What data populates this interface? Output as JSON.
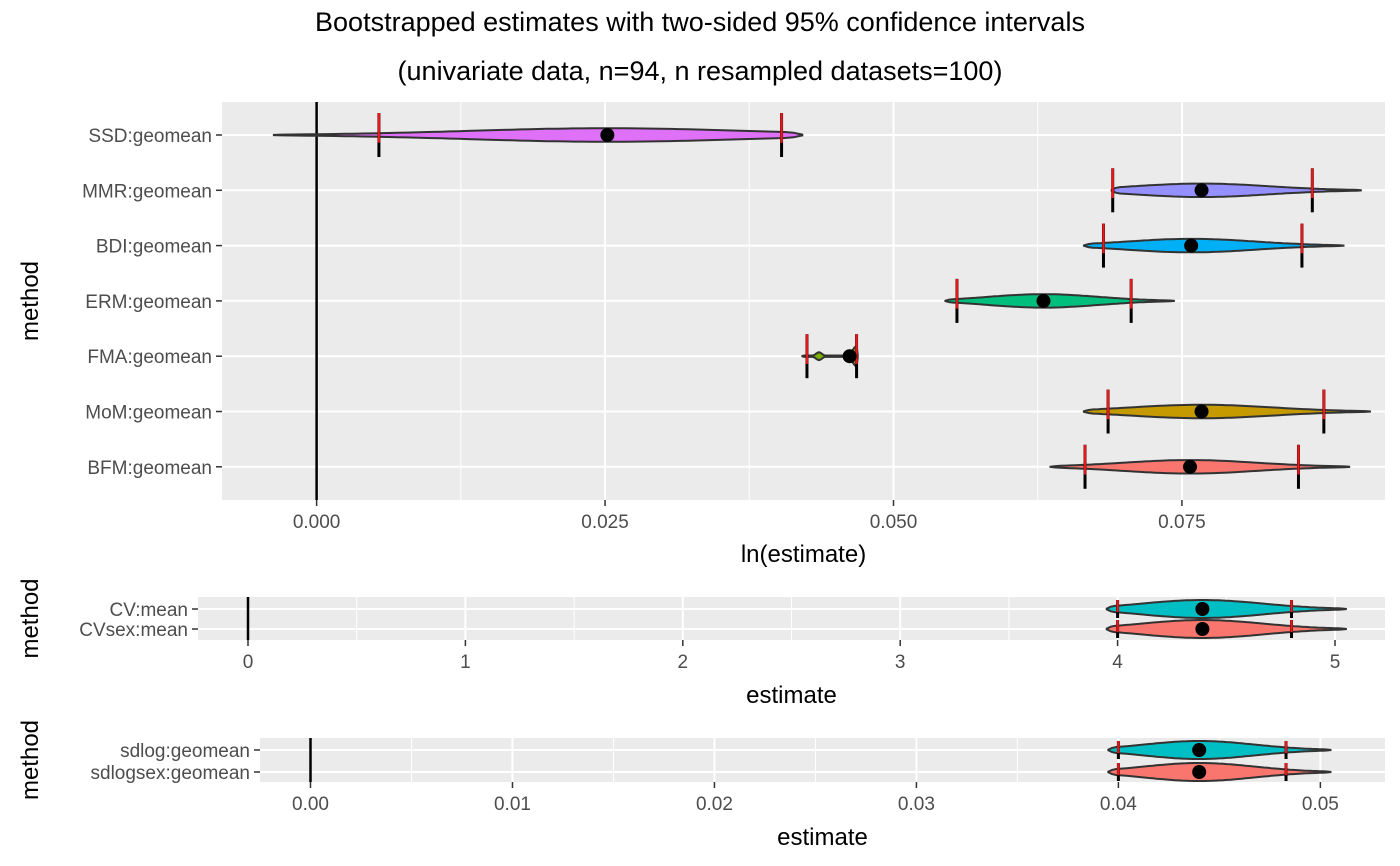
{
  "title_line1": "Bootstrapped estimates with two-sided 95% confidence intervals",
  "title_line2": "(univariate data, n=94, n resampled datasets=100)",
  "colors": {
    "panel_bg": "#ebebeb",
    "grid": "#ffffff",
    "ci_marker": "#e31a1c",
    "point": "#000000",
    "outline": "#333333"
  },
  "chart_data": [
    {
      "type": "violin",
      "xlabel": "ln(estimate)",
      "ylabel": "method",
      "xlim": [
        -0.0082,
        0.0926
      ],
      "xticks": [
        0.0,
        0.025,
        0.05,
        0.075
      ],
      "xtick_labels": [
        "0.000",
        "0.025",
        "0.050",
        "0.075"
      ],
      "reference_line": 0.0,
      "series": [
        {
          "name": "SSD:geomean",
          "fill": "#df70f8",
          "estimate": 0.0252,
          "ci_low": 0.0054,
          "ci_high": 0.0403,
          "range": [
            -0.0037,
            0.0421
          ]
        },
        {
          "name": "MMR:geomean",
          "fill": "#9590ff",
          "estimate": 0.0767,
          "ci_low": 0.069,
          "ci_high": 0.0863,
          "range": [
            0.0689,
            0.0905
          ]
        },
        {
          "name": "BDI:geomean",
          "fill": "#00b0f6",
          "estimate": 0.0758,
          "ci_low": 0.0682,
          "ci_high": 0.0854,
          "range": [
            0.0665,
            0.089
          ]
        },
        {
          "name": "ERM:geomean",
          "fill": "#00bf7d",
          "estimate": 0.063,
          "ci_low": 0.0555,
          "ci_high": 0.0706,
          "range": [
            0.0545,
            0.0743
          ]
        },
        {
          "name": "FMA:geomean",
          "fill": "#7cae00",
          "estimate": 0.0462,
          "ci_low": 0.0425,
          "ci_high": 0.0468,
          "range": [
            0.0421,
            0.0469
          ]
        },
        {
          "name": "MoM:geomean",
          "fill": "#c49a00",
          "estimate": 0.0767,
          "ci_low": 0.0686,
          "ci_high": 0.0873,
          "range": [
            0.0665,
            0.0913
          ]
        },
        {
          "name": "BFM:geomean",
          "fill": "#f8766d",
          "estimate": 0.0757,
          "ci_low": 0.0666,
          "ci_high": 0.0851,
          "range": [
            0.0636,
            0.0895
          ]
        }
      ]
    },
    {
      "type": "violin",
      "xlabel": "estimate",
      "ylabel": "method",
      "xlim": [
        -0.23,
        5.23
      ],
      "xticks": [
        0,
        1,
        2,
        3,
        4,
        5
      ],
      "xtick_labels": [
        "0",
        "1",
        "2",
        "3",
        "4",
        "5"
      ],
      "reference_line": 0,
      "series": [
        {
          "name": "CV:mean",
          "fill": "#00bfc4",
          "estimate": 4.39,
          "ci_low": 4.0,
          "ci_high": 4.8,
          "range": [
            3.95,
            5.05
          ]
        },
        {
          "name": "CVsex:mean",
          "fill": "#f8766d",
          "estimate": 4.39,
          "ci_low": 4.0,
          "ci_high": 4.8,
          "range": [
            3.95,
            5.05
          ]
        }
      ]
    },
    {
      "type": "violin",
      "xlabel": "estimate",
      "ylabel": "method",
      "xlim": [
        -0.0025,
        0.0532
      ],
      "xticks": [
        0.0,
        0.01,
        0.02,
        0.03,
        0.04,
        0.05
      ],
      "xtick_labels": [
        "0.00",
        "0.01",
        "0.02",
        "0.03",
        "0.04",
        "0.05"
      ],
      "reference_line": 0.0,
      "series": [
        {
          "name": "sdlog:geomean",
          "fill": "#00bfc4",
          "estimate": 0.044,
          "ci_low": 0.04,
          "ci_high": 0.0483,
          "range": [
            0.0395,
            0.0505
          ]
        },
        {
          "name": "sdlogsex:geomean",
          "fill": "#f8766d",
          "estimate": 0.044,
          "ci_low": 0.04,
          "ci_high": 0.0483,
          "range": [
            0.0395,
            0.0505
          ]
        }
      ]
    }
  ]
}
